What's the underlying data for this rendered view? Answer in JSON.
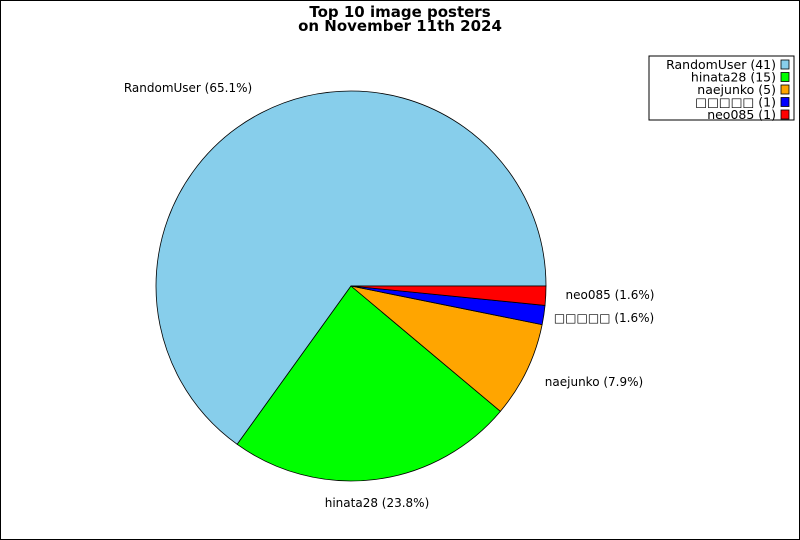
{
  "chart_data": {
    "type": "pie",
    "title": [
      "Top 10 image posters",
      "on November 11th 2024"
    ],
    "slices": [
      {
        "name": "RandomUser",
        "count": 41,
        "percent": 65.1,
        "color": "#87ceeb",
        "label": "RandomUser (65.1%)",
        "legend": "RandomUser (41)"
      },
      {
        "name": "hinata28",
        "count": 15,
        "percent": 23.8,
        "color": "#00ff00",
        "label": "hinata28 (23.8%)",
        "legend": "hinata28 (15)"
      },
      {
        "name": "naejunko",
        "count": 5,
        "percent": 7.9,
        "color": "#ffa500",
        "label": "naejunko (7.9%)",
        "legend": "naejunko (5)"
      },
      {
        "name": "□□□□□",
        "count": 1,
        "percent": 1.6,
        "color": "#0000ff",
        "label": "□□□□□ (1.6%)",
        "legend": "□□□□□ (1)"
      },
      {
        "name": "neo085",
        "count": 1,
        "percent": 1.6,
        "color": "#ff0000",
        "label": "neo085 (1.6%)",
        "legend": "neo085 (1)"
      }
    ],
    "legend_position": "top-right"
  }
}
